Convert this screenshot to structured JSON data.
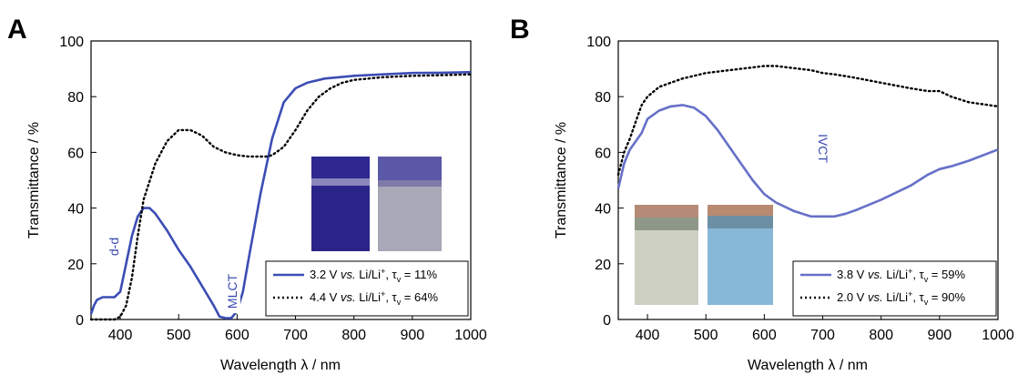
{
  "colors": {
    "series_solid": "#3c4db5",
    "series_dotted": "#000000",
    "annotation": "#3a49b0"
  },
  "chart_data": [
    {
      "panel": "A",
      "type": "line",
      "xlabel": "Wavelength λ / nm",
      "ylabel": "Transmittance / %",
      "xlim": [
        350,
        1000
      ],
      "ylim": [
        0,
        100
      ],
      "xticks": [
        400,
        500,
        600,
        700,
        800,
        900,
        1000
      ],
      "yticks": [
        0,
        20,
        40,
        60,
        80,
        100
      ],
      "grid": false,
      "legend_position": "bottom-right",
      "series": [
        {
          "legend": {
            "prefix": "3.2 V ",
            "vs": "vs.",
            "mid": " Li/Li",
            "sup": "+",
            "tau": ", τ",
            "sub": "v",
            "suffix": " = 11%"
          },
          "style": "solid",
          "x": [
            350,
            355,
            360,
            370,
            380,
            390,
            400,
            410,
            420,
            430,
            440,
            450,
            460,
            480,
            500,
            520,
            540,
            560,
            570,
            580,
            590,
            600,
            610,
            620,
            640,
            660,
            680,
            700,
            720,
            750,
            800,
            850,
            900,
            950,
            1000
          ],
          "y": [
            2,
            5,
            7,
            8,
            8,
            8,
            10,
            20,
            30,
            37,
            40,
            40,
            38,
            32,
            25,
            19,
            12,
            5,
            1,
            0.5,
            0.5,
            3,
            10,
            22,
            45,
            65,
            78,
            83,
            85,
            86.5,
            87.5,
            88,
            88.5,
            88.6,
            88.8
          ]
        },
        {
          "legend": {
            "prefix": "4.4 V ",
            "vs": "vs.",
            "mid": " Li/Li",
            "sup": "+",
            "tau": ", τ",
            "sub": "v",
            "suffix": " = 64%"
          },
          "style": "dotted",
          "x": [
            350,
            370,
            390,
            400,
            410,
            420,
            430,
            440,
            460,
            480,
            500,
            520,
            540,
            560,
            580,
            600,
            620,
            640,
            650,
            660,
            680,
            700,
            720,
            740,
            760,
            780,
            800,
            850,
            900,
            950,
            1000
          ],
          "y": [
            0,
            0,
            0,
            1,
            5,
            15,
            30,
            43,
            56,
            64,
            68,
            68,
            66,
            62,
            60,
            59,
            58.5,
            58.5,
            58.5,
            59,
            62,
            68,
            75,
            80,
            83,
            85,
            86,
            87,
            87.5,
            87.7,
            88
          ]
        }
      ],
      "annotations": [
        "d-d",
        "MLCT"
      ]
    },
    {
      "panel": "B",
      "type": "line",
      "xlabel": "Wavelength λ / nm",
      "ylabel": "Transmittance / %",
      "xlim": [
        350,
        1000
      ],
      "ylim": [
        0,
        100
      ],
      "xticks": [
        400,
        500,
        600,
        700,
        800,
        900,
        1000
      ],
      "yticks": [
        0,
        20,
        40,
        60,
        80,
        100
      ],
      "grid": false,
      "legend_position": "bottom-right",
      "series": [
        {
          "legend": {
            "prefix": "3.8 V ",
            "vs": "vs.",
            "mid": " Li/Li",
            "sup": "+",
            "tau": ", τ",
            "sub": "v",
            "suffix": " = 59%"
          },
          "style": "solid",
          "x": [
            350,
            360,
            370,
            380,
            390,
            400,
            420,
            440,
            460,
            480,
            500,
            520,
            540,
            560,
            580,
            600,
            620,
            650,
            680,
            700,
            720,
            740,
            760,
            800,
            850,
            880,
            900,
            920,
            950,
            1000
          ],
          "y": [
            47,
            56,
            61,
            64,
            67,
            72,
            75,
            76.5,
            77,
            76,
            73,
            68,
            62,
            56,
            50,
            45,
            42,
            39,
            37,
            37,
            37,
            38,
            39.5,
            43,
            48,
            52,
            54,
            55,
            57,
            61
          ]
        },
        {
          "legend": {
            "prefix": "2.0 V ",
            "vs": "vs.",
            "mid": " Li/Li",
            "sup": "+",
            "tau": ", τ",
            "sub": "v",
            "suffix": " = 90%"
          },
          "style": "dotted",
          "x": [
            350,
            360,
            370,
            380,
            390,
            400,
            420,
            440,
            460,
            480,
            500,
            520,
            540,
            560,
            580,
            600,
            620,
            640,
            660,
            680,
            700,
            720,
            750,
            800,
            850,
            880,
            900,
            920,
            950,
            1000
          ],
          "y": [
            52,
            60,
            65,
            71,
            77,
            80,
            83.5,
            85,
            86.5,
            87.5,
            88.5,
            89,
            89.5,
            90,
            90.5,
            91,
            91,
            90.5,
            90,
            89.5,
            88.5,
            88,
            87,
            85,
            83,
            82,
            82,
            80,
            78,
            76.5
          ]
        }
      ],
      "annotations": [
        "IVCT"
      ]
    }
  ]
}
